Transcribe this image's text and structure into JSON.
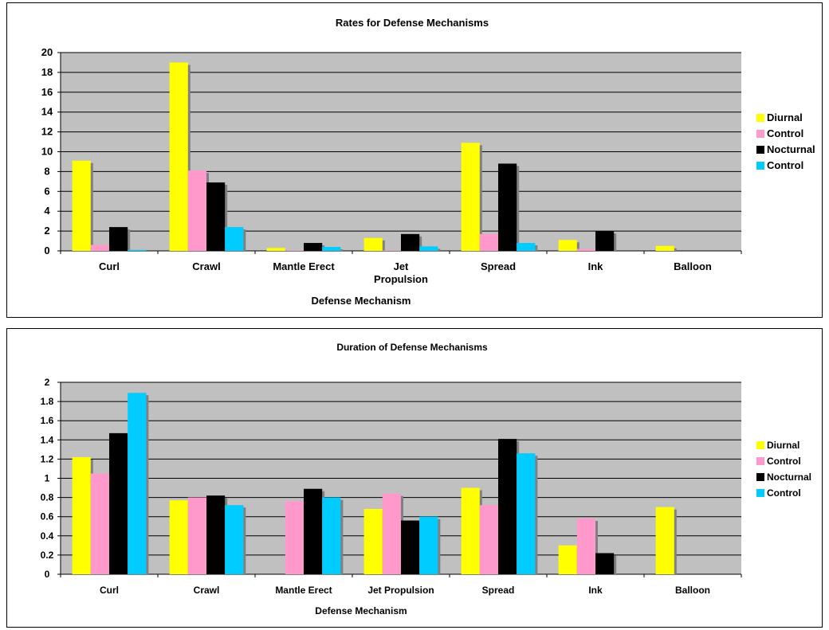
{
  "charts": [
    {
      "title": "Rates for Defense Mechanisms",
      "xlabel": "Defense Mechanism"
    },
    {
      "title": "Duration of Defense Mechanisms",
      "xlabel": "Defense Mechanism"
    }
  ],
  "chart_data": [
    {
      "type": "bar",
      "title": "Rates for Defense Mechanisms",
      "xlabel": "Defense Mechanism",
      "ylabel": "",
      "categories": [
        [
          "Curl"
        ],
        [
          "Crawl"
        ],
        [
          "Mantle Erect"
        ],
        [
          "Jet",
          "Propulsion"
        ],
        [
          "Spread"
        ],
        [
          "Ink"
        ],
        [
          "Balloon"
        ]
      ],
      "ylim": [
        0,
        20
      ],
      "yticks": [
        "0",
        "2",
        "4",
        "6",
        "8",
        "10",
        "12",
        "14",
        "16",
        "18",
        "20"
      ],
      "grid": true,
      "legend_position": "right",
      "series": [
        {
          "name": "Diurnal",
          "color": "#ffff00",
          "values": [
            9.1,
            19.0,
            0.3,
            1.3,
            10.9,
            1.1,
            0.5
          ]
        },
        {
          "name": "Control",
          "color": "#ff99cc",
          "values": [
            0.6,
            8.1,
            0.05,
            0.05,
            1.7,
            0.2,
            0
          ]
        },
        {
          "name": "Nocturnal",
          "color": "#000000",
          "values": [
            2.4,
            6.9,
            0.8,
            1.7,
            8.8,
            2.0,
            0
          ]
        },
        {
          "name": "Control",
          "color": "#00ccff",
          "values": [
            0.1,
            2.4,
            0.4,
            0.45,
            0.8,
            0,
            0
          ]
        }
      ]
    },
    {
      "type": "bar",
      "title": "Duration of Defense Mechanisms",
      "xlabel": "Defense Mechanism",
      "ylabel": "",
      "categories": [
        [
          "Curl"
        ],
        [
          "Crawl"
        ],
        [
          "Mantle Erect"
        ],
        [
          "Jet Propulsion"
        ],
        [
          "Spread"
        ],
        [
          "Ink"
        ],
        [
          "Balloon"
        ]
      ],
      "ylim": [
        0,
        2
      ],
      "yticks": [
        "0",
        "0.2",
        "0.4",
        "0.6",
        "0.8",
        "1",
        "1.2",
        "1.4",
        "1.6",
        "1.8",
        "2"
      ],
      "grid": true,
      "legend_position": "right",
      "series": [
        {
          "name": "Diurnal",
          "color": "#ffff00",
          "values": [
            1.22,
            0.77,
            0,
            0.68,
            0.9,
            0.3,
            0.7
          ]
        },
        {
          "name": "Control",
          "color": "#ff99cc",
          "values": [
            1.05,
            0.8,
            0.76,
            0.84,
            0.72,
            0.58,
            0
          ]
        },
        {
          "name": "Nocturnal",
          "color": "#000000",
          "values": [
            1.47,
            0.82,
            0.89,
            0.56,
            1.41,
            0.22,
            0
          ]
        },
        {
          "name": "Control",
          "color": "#00ccff",
          "values": [
            1.89,
            0.72,
            0.8,
            0.6,
            1.26,
            0,
            0
          ]
        }
      ]
    }
  ]
}
